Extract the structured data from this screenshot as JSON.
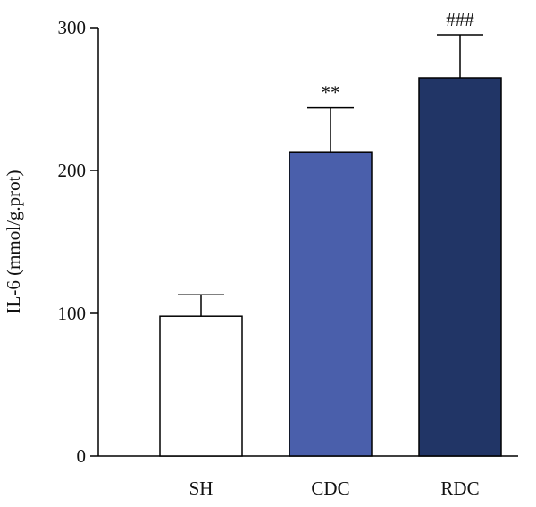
{
  "chart_data": {
    "type": "bar",
    "title": "",
    "xlabel": "",
    "ylabel": "IL-6 (mmol/g.prot)",
    "ylim": [
      0,
      300
    ],
    "yticks": [
      0,
      100,
      200,
      300
    ],
    "grid": false,
    "categories": [
      "SH",
      "CDC",
      "RDC"
    ],
    "values": [
      98,
      213,
      265
    ],
    "errors": [
      15,
      31,
      30
    ],
    "annotations": [
      "",
      "**",
      "###"
    ],
    "colors": {
      "SH": "#ffffff",
      "CDC": "#4a5fab",
      "RDC": "#213566",
      "outline": "#000000"
    }
  }
}
